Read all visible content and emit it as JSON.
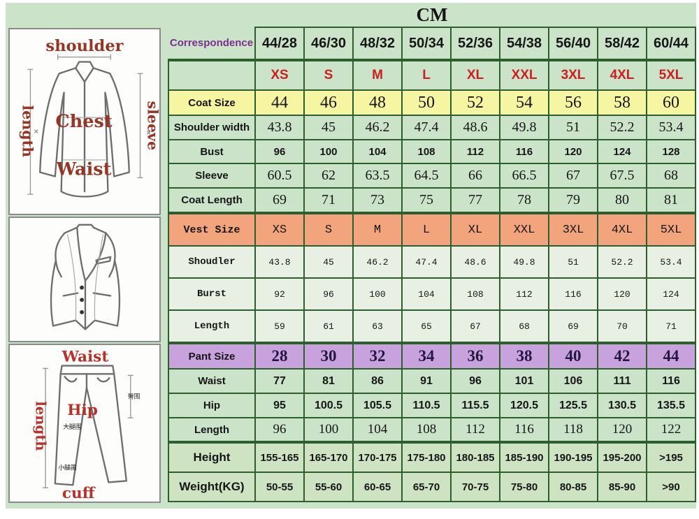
{
  "title": "CM",
  "colors": {
    "page_bg": "#cbe3c9",
    "grid_border": "#2c5f2c",
    "coat_row_bg": "#f6f6a2",
    "vest_header_bg": "#f2a47c",
    "vest_row_bg": "#e7f0e2",
    "pant_header_bg": "#c8a2dc",
    "size_text_red": "#cc2020",
    "correspondence_purple": "#7b2f8e",
    "sketch_label_red": "#b5322a"
  },
  "sketches": {
    "jacket": {
      "top_label": "shoulder",
      "left_label": "length",
      "right_label": "sleeve",
      "center_label": "Chest",
      "lower_label": "Waist"
    },
    "pants": {
      "top_label": "Waist",
      "left_label": "length",
      "center_label": "Hip",
      "bottom_label": "cuff",
      "hip_cn": "臀围",
      "thigh_cn": "大腿围",
      "calf_cn": "小腿围"
    }
  },
  "table": {
    "rows": [
      {
        "id": "correspondence",
        "style": "corr",
        "thick_top": false,
        "label": "Correspondence",
        "values": [
          "44/28",
          "46/30",
          "48/32",
          "50/34",
          "52/36",
          "54/38",
          "56/40",
          "58/42",
          "60/44"
        ]
      },
      {
        "id": "intl-size",
        "style": "size",
        "thick_top": true,
        "label": "",
        "values": [
          "XS",
          "S",
          "M",
          "L",
          "XL",
          "XXL",
          "3XL",
          "4XL",
          "5XL"
        ]
      },
      {
        "id": "coat-size",
        "style": "coatsize",
        "thick_top": false,
        "label": "Coat Size",
        "values": [
          "44",
          "46",
          "48",
          "50",
          "52",
          "54",
          "56",
          "58",
          "60"
        ]
      },
      {
        "id": "shoulder-width",
        "style": "coatnum",
        "thick_top": false,
        "label": "Shoulder width",
        "values": [
          "43.8",
          "45",
          "46.2",
          "47.4",
          "48.6",
          "49.8",
          "51",
          "52.2",
          "53.4"
        ]
      },
      {
        "id": "bust",
        "style": "bust",
        "thick_top": false,
        "label": "Bust",
        "values": [
          "96",
          "100",
          "104",
          "108",
          "112",
          "116",
          "120",
          "124",
          "128"
        ]
      },
      {
        "id": "sleeve",
        "style": "coatnum",
        "thick_top": false,
        "label": "Sleeve",
        "values": [
          "60.5",
          "62",
          "63.5",
          "64.5",
          "66",
          "66.5",
          "67",
          "67.5",
          "68"
        ]
      },
      {
        "id": "coat-length",
        "style": "coatnum",
        "thick_top": false,
        "label": "Coat Length",
        "values": [
          "69",
          "71",
          "73",
          "75",
          "77",
          "78",
          "79",
          "80",
          "81"
        ]
      },
      {
        "id": "vest-size",
        "style": "vesthead",
        "thick_top": true,
        "label": "Vest Size",
        "values": [
          "XS",
          "S",
          "M",
          "L",
          "XL",
          "XXL",
          "3XL",
          "4XL",
          "5XL"
        ]
      },
      {
        "id": "vest-shoulder",
        "style": "vest",
        "thick_top": false,
        "label": "Shoudler",
        "values": [
          "43.8",
          "45",
          "46.2",
          "47.4",
          "48.6",
          "49.8",
          "51",
          "52.2",
          "53.4"
        ]
      },
      {
        "id": "vest-bust",
        "style": "vest",
        "thick_top": false,
        "label": "Burst",
        "values": [
          "92",
          "96",
          "100",
          "104",
          "108",
          "112",
          "116",
          "120",
          "124"
        ]
      },
      {
        "id": "vest-length",
        "style": "vest",
        "thick_top": false,
        "label": "Length",
        "values": [
          "59",
          "61",
          "63",
          "65",
          "67",
          "68",
          "69",
          "70",
          "71"
        ]
      },
      {
        "id": "pant-size",
        "style": "panthead",
        "thick_top": true,
        "label": "Pant Size",
        "values": [
          "28",
          "30",
          "32",
          "34",
          "36",
          "38",
          "40",
          "42",
          "44"
        ]
      },
      {
        "id": "pant-waist",
        "style": "pantnum",
        "thick_top": false,
        "label": "Waist",
        "values": [
          "77",
          "81",
          "86",
          "91",
          "96",
          "101",
          "106",
          "111",
          "116"
        ]
      },
      {
        "id": "pant-hip",
        "style": "pantnum",
        "thick_top": false,
        "label": "Hip",
        "values": [
          "95",
          "100.5",
          "105.5",
          "110.5",
          "115.5",
          "120.5",
          "125.5",
          "130.5",
          "135.5"
        ]
      },
      {
        "id": "pant-length",
        "style": "pantserif",
        "thick_top": false,
        "label": "Length",
        "values": [
          "96",
          "100",
          "104",
          "108",
          "112",
          "116",
          "118",
          "120",
          "122"
        ]
      },
      {
        "id": "height",
        "style": "common",
        "thick_top": true,
        "label": "Height",
        "values": [
          "155-165",
          "165-170",
          "170-175",
          "175-180",
          "180-185",
          "185-190",
          "190-195",
          "195-200",
          ">195"
        ]
      },
      {
        "id": "weight",
        "style": "common",
        "thick_top": false,
        "label": "Weight(KG)",
        "values": [
          "50-55",
          "55-60",
          "60-65",
          "65-70",
          "70-75",
          "75-80",
          "80-85",
          "85-90",
          ">90"
        ]
      }
    ]
  }
}
